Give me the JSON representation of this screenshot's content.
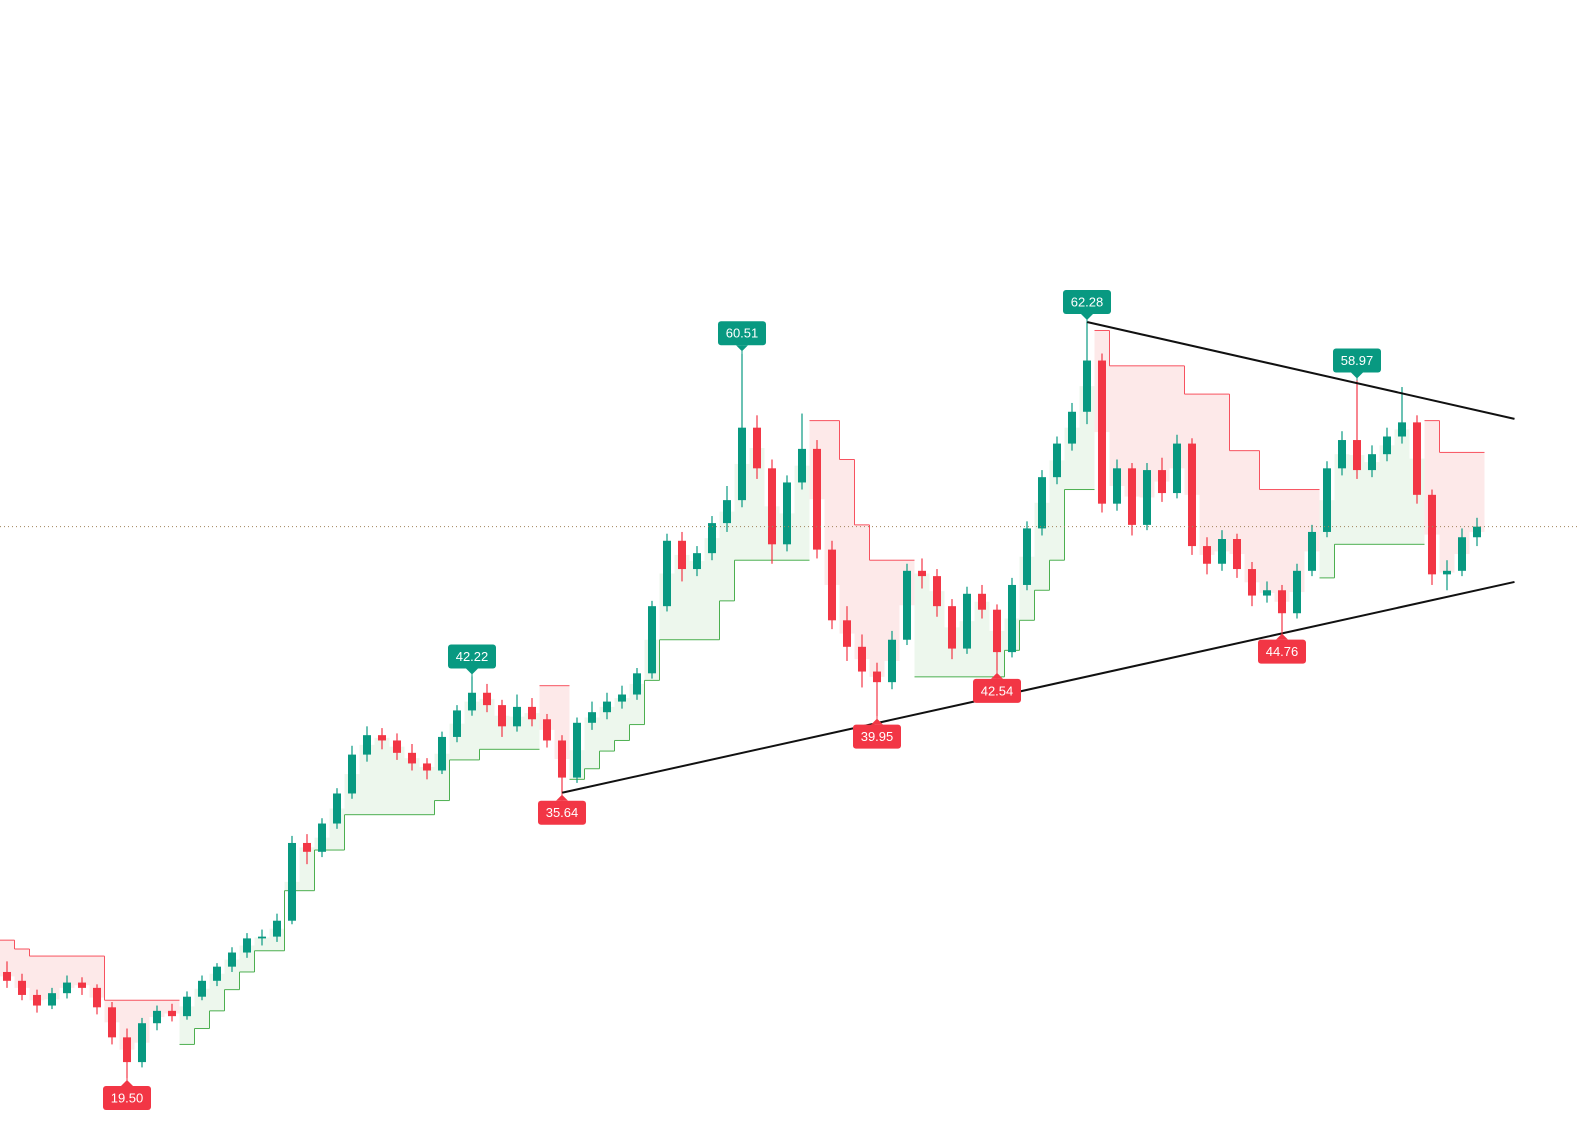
{
  "chart_data": {
    "type": "candlestick",
    "up_color": "#089981",
    "down_color": "#f23645",
    "up_fill": "#e8f5e9",
    "down_fill": "#fde4e4",
    "up_line": "#4caf50",
    "down_line": "#f7525f",
    "trendline_color": "#111111",
    "price_line_color": "#a0825a",
    "candles": {
      "open": [
        25.5,
        25.0,
        24.2,
        23.6,
        24.3,
        24.9,
        24.6,
        23.5,
        21.8,
        20.4,
        22.6,
        23.3,
        23.0,
        24.1,
        25.0,
        25.8,
        26.6,
        27.4,
        27.5,
        28.4,
        32.8,
        32.3,
        33.9,
        35.6,
        37.8,
        38.9,
        38.6,
        37.9,
        37.3,
        36.9,
        38.8,
        40.3,
        41.3,
        40.6,
        39.4,
        40.5,
        39.8,
        38.6,
        36.5,
        39.6,
        40.2,
        40.8,
        41.2,
        42.4,
        46.2,
        49.9,
        48.3,
        49.2,
        50.9,
        52.2,
        56.3,
        54.0,
        49.7,
        53.2,
        55.1,
        49.4,
        45.4,
        43.9,
        42.5,
        41.9,
        44.3,
        48.2,
        47.9,
        46.2,
        43.8,
        46.9,
        46.0,
        43.6,
        47.4,
        50.6,
        53.5,
        55.4,
        57.2,
        60.1,
        52.0,
        54.0,
        50.8,
        53.9,
        52.6,
        55.4,
        49.6,
        48.6,
        50.0,
        48.3,
        46.8,
        47.1,
        45.8,
        48.2,
        50.4,
        54.0,
        55.6,
        53.9,
        54.8,
        55.8,
        56.6,
        52.5,
        48.0,
        48.2,
        50.1
      ],
      "high": [
        26.1,
        25.4,
        24.5,
        24.6,
        25.3,
        25.2,
        24.8,
        23.8,
        22.3,
        22.9,
        23.6,
        23.7,
        24.4,
        25.3,
        26.0,
        26.9,
        27.7,
        27.9,
        28.8,
        33.2,
        33.3,
        34.2,
        35.9,
        38.3,
        39.4,
        39.3,
        39.0,
        38.4,
        37.6,
        39.1,
        40.6,
        42.22,
        41.8,
        40.9,
        41.2,
        41.0,
        40.1,
        38.9,
        39.9,
        40.8,
        41.3,
        41.7,
        42.7,
        46.5,
        50.3,
        50.4,
        49.6,
        51.3,
        53.0,
        60.51,
        57.0,
        54.5,
        53.6,
        57.1,
        55.6,
        49.9,
        46.2,
        44.6,
        43.0,
        44.8,
        48.6,
        48.9,
        48.3,
        46.6,
        47.3,
        47.4,
        46.3,
        47.8,
        51.0,
        53.9,
        55.8,
        57.7,
        62.28,
        60.5,
        54.5,
        54.3,
        54.3,
        54.6,
        55.9,
        55.7,
        50.1,
        50.5,
        50.3,
        48.7,
        47.6,
        47.4,
        48.6,
        50.8,
        54.4,
        56.1,
        58.97,
        55.3,
        56.3,
        58.6,
        57.0,
        52.8,
        48.8,
        50.6,
        51.2
      ],
      "low": [
        24.6,
        23.9,
        23.2,
        23.4,
        24.0,
        24.2,
        23.1,
        21.4,
        19.5,
        20.1,
        22.2,
        22.7,
        22.8,
        23.9,
        24.7,
        25.5,
        26.3,
        27.0,
        27.2,
        28.2,
        31.6,
        32.0,
        33.6,
        35.3,
        37.4,
        38.1,
        37.5,
        36.9,
        36.4,
        36.7,
        38.5,
        40.0,
        40.2,
        38.8,
        39.1,
        39.4,
        38.2,
        35.64,
        36.2,
        39.2,
        39.8,
        40.4,
        40.9,
        42.1,
        45.9,
        47.6,
        47.9,
        48.8,
        50.4,
        51.8,
        53.4,
        48.6,
        49.3,
        52.8,
        48.9,
        44.9,
        43.1,
        41.6,
        39.95,
        41.5,
        44.0,
        47.2,
        45.6,
        43.2,
        43.5,
        45.5,
        42.54,
        43.3,
        47.1,
        50.2,
        53.1,
        55.0,
        56.5,
        51.5,
        51.6,
        50.2,
        50.5,
        52.1,
        52.3,
        49.1,
        48.0,
        48.2,
        47.8,
        46.2,
        46.4,
        44.76,
        45.5,
        47.9,
        50.1,
        53.6,
        53.4,
        53.5,
        54.4,
        55.4,
        52.0,
        47.4,
        47.1,
        47.9,
        49.6
      ],
      "close": [
        25.0,
        24.2,
        23.6,
        24.3,
        24.9,
        24.6,
        23.5,
        21.8,
        20.4,
        22.6,
        23.3,
        23.0,
        24.1,
        25.0,
        25.8,
        26.6,
        27.4,
        27.5,
        28.4,
        32.8,
        32.3,
        33.9,
        35.6,
        37.8,
        38.9,
        38.6,
        37.9,
        37.3,
        36.9,
        38.8,
        40.3,
        41.3,
        40.6,
        39.4,
        40.5,
        39.8,
        38.6,
        36.5,
        39.6,
        40.2,
        40.8,
        41.2,
        42.4,
        46.2,
        49.9,
        48.3,
        49.2,
        50.9,
        52.2,
        56.3,
        54.0,
        49.7,
        53.2,
        55.1,
        49.4,
        45.4,
        43.9,
        42.5,
        41.9,
        44.3,
        48.2,
        47.9,
        46.2,
        43.8,
        46.9,
        46.0,
        43.6,
        47.4,
        50.6,
        53.5,
        55.4,
        57.2,
        60.1,
        52.0,
        54.0,
        50.8,
        53.9,
        52.6,
        55.4,
        49.6,
        48.6,
        50.0,
        48.3,
        46.8,
        47.1,
        45.8,
        48.2,
        50.4,
        54.0,
        55.6,
        53.9,
        54.8,
        55.8,
        56.6,
        52.5,
        48.0,
        48.2,
        50.1,
        50.7
      ],
      "high_labels": [
        null,
        null,
        null,
        null,
        null,
        null,
        null,
        null,
        null,
        null,
        null,
        null,
        null,
        null,
        null,
        null,
        null,
        null,
        null,
        null,
        null,
        null,
        null,
        null,
        null,
        null,
        null,
        null,
        null,
        null,
        null,
        "42.22",
        null,
        null,
        null,
        null,
        null,
        null,
        null,
        null,
        null,
        null,
        null,
        null,
        null,
        null,
        null,
        null,
        null,
        "60.51",
        null,
        null,
        null,
        null,
        null,
        null,
        null,
        null,
        null,
        null,
        null,
        null,
        null,
        null,
        null,
        null,
        null,
        null,
        null,
        null,
        null,
        null,
        "62.28",
        null,
        null,
        null,
        null,
        null,
        null,
        null,
        null,
        null,
        null,
        null,
        null,
        null,
        null,
        null,
        null,
        null,
        "58.97",
        null,
        null,
        null,
        null,
        null,
        null,
        null,
        null
      ],
      "low_labels": [
        null,
        null,
        null,
        null,
        null,
        null,
        null,
        null,
        "19.50",
        null,
        null,
        null,
        null,
        null,
        null,
        null,
        null,
        null,
        null,
        null,
        null,
        null,
        null,
        null,
        null,
        null,
        null,
        null,
        null,
        null,
        null,
        null,
        null,
        null,
        null,
        null,
        null,
        "35.64",
        null,
        null,
        null,
        null,
        null,
        null,
        null,
        null,
        null,
        null,
        null,
        null,
        null,
        null,
        null,
        null,
        null,
        null,
        null,
        null,
        "39.95",
        null,
        null,
        null,
        null,
        null,
        null,
        null,
        "42.54",
        null,
        null,
        null,
        null,
        null,
        null,
        null,
        null,
        null,
        null,
        null,
        null,
        null,
        null,
        null,
        null,
        null,
        null,
        "44.76",
        null,
        null,
        null,
        null,
        null,
        null,
        null,
        null,
        null,
        null,
        null,
        null,
        null
      ]
    },
    "supertrend_up": [
      null,
      null,
      null,
      null,
      null,
      null,
      null,
      null,
      null,
      null,
      null,
      null,
      21.4,
      22.3,
      23.3,
      24.5,
      25.5,
      26.7,
      26.7,
      30.1,
      30.1,
      32.4,
      32.4,
      34.4,
      34.4,
      34.4,
      34.4,
      34.4,
      34.4,
      35.2,
      37.5,
      37.5,
      38.1,
      38.1,
      38.1,
      38.1,
      null,
      null,
      36.4,
      37.0,
      38.0,
      38.6,
      39.5,
      42.0,
      44.3,
      44.3,
      44.3,
      44.3,
      46.5,
      48.8,
      48.8,
      48.8,
      48.8,
      48.8,
      null,
      null,
      null,
      null,
      null,
      null,
      null,
      42.2,
      42.2,
      42.2,
      42.2,
      42.2,
      42.2,
      43.7,
      45.4,
      47.1,
      48.8,
      52.8,
      52.8,
      null,
      null,
      null,
      null,
      null,
      null,
      null,
      null,
      null,
      null,
      null,
      null,
      null,
      null,
      null,
      47.8,
      49.7,
      49.7,
      49.7,
      49.7,
      49.7,
      49.7,
      null,
      null,
      null,
      null
    ],
    "supertrend_down": [
      27.3,
      26.8,
      26.4,
      26.4,
      26.4,
      26.4,
      26.4,
      23.9,
      23.9,
      23.9,
      23.9,
      23.9,
      null,
      null,
      null,
      null,
      null,
      null,
      null,
      null,
      null,
      null,
      null,
      null,
      null,
      null,
      null,
      null,
      null,
      null,
      null,
      null,
      null,
      null,
      null,
      null,
      41.7,
      41.7,
      null,
      null,
      null,
      null,
      null,
      null,
      null,
      null,
      null,
      null,
      null,
      null,
      null,
      null,
      null,
      null,
      56.7,
      56.7,
      54.5,
      50.8,
      48.8,
      48.8,
      48.8,
      null,
      null,
      null,
      null,
      null,
      null,
      null,
      null,
      null,
      null,
      null,
      null,
      61.8,
      59.8,
      59.8,
      59.8,
      59.8,
      59.8,
      58.2,
      58.2,
      58.2,
      55.0,
      55.0,
      52.8,
      52.8,
      52.8,
      52.8,
      null,
      null,
      null,
      null,
      null,
      null,
      null,
      56.7,
      54.9,
      54.9,
      54.9
    ],
    "trendlines": [
      {
        "x": [
          72,
          100.5
        ],
        "y": [
          62.28,
          56.8
        ]
      },
      {
        "x": [
          37,
          100.5
        ],
        "y": [
          35.64,
          47.57
        ]
      }
    ]
  }
}
